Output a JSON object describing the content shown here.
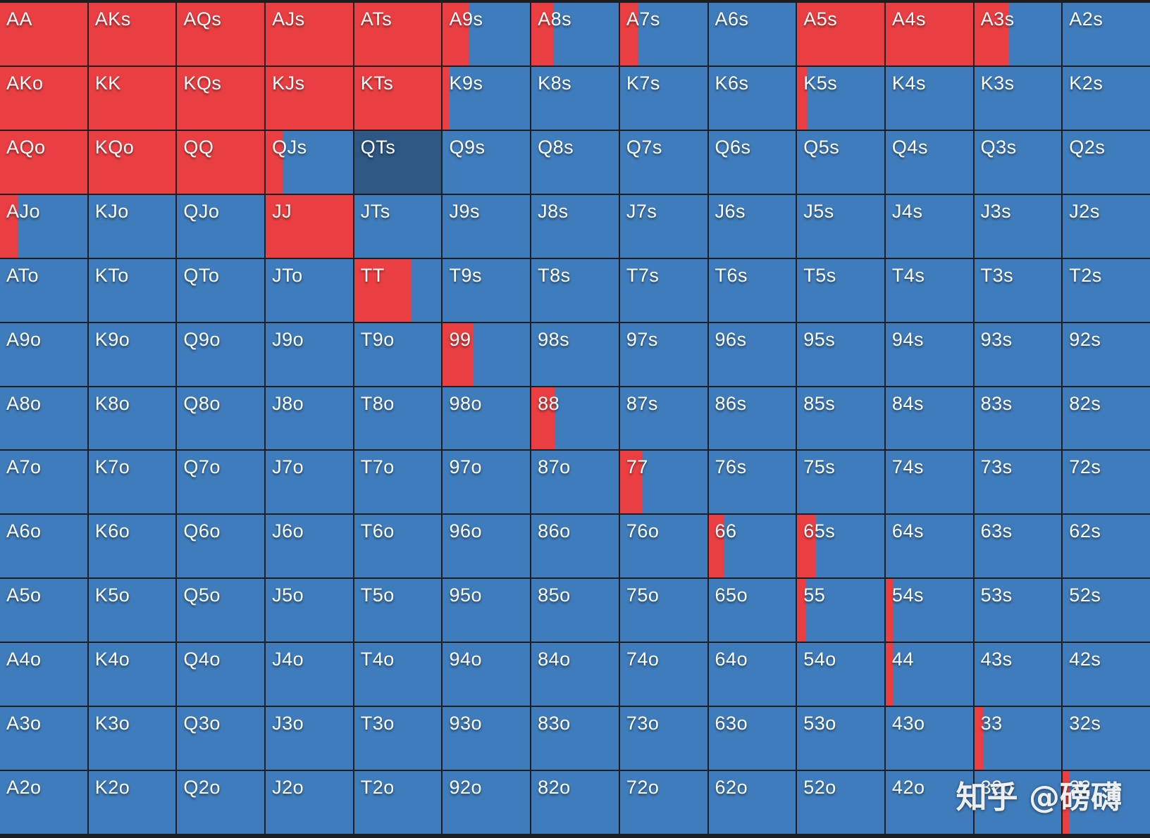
{
  "colors": {
    "raise": "#ea3f42",
    "fold": "#3f7cbb",
    "selected": "#2e5784",
    "gridline": "#1e1e20"
  },
  "selected_hand": "QTs",
  "watermark": "知乎 @磅礴",
  "grid": [
    [
      {
        "hand": "AA",
        "raise": 1.0
      },
      {
        "hand": "AKs",
        "raise": 1.0
      },
      {
        "hand": "AQs",
        "raise": 1.0
      },
      {
        "hand": "AJs",
        "raise": 1.0
      },
      {
        "hand": "ATs",
        "raise": 1.0
      },
      {
        "hand": "A9s",
        "raise": 0.3
      },
      {
        "hand": "A8s",
        "raise": 0.25
      },
      {
        "hand": "A7s",
        "raise": 0.2
      },
      {
        "hand": "A6s",
        "raise": 0.0
      },
      {
        "hand": "A5s",
        "raise": 1.0
      },
      {
        "hand": "A4s",
        "raise": 1.0
      },
      {
        "hand": "A3s",
        "raise": 0.4
      },
      {
        "hand": "A2s",
        "raise": 0.0
      }
    ],
    [
      {
        "hand": "AKo",
        "raise": 1.0
      },
      {
        "hand": "KK",
        "raise": 1.0
      },
      {
        "hand": "KQs",
        "raise": 1.0
      },
      {
        "hand": "KJs",
        "raise": 1.0
      },
      {
        "hand": "KTs",
        "raise": 1.0
      },
      {
        "hand": "K9s",
        "raise": 0.08
      },
      {
        "hand": "K8s",
        "raise": 0.0
      },
      {
        "hand": "K7s",
        "raise": 0.0
      },
      {
        "hand": "K6s",
        "raise": 0.0
      },
      {
        "hand": "K5s",
        "raise": 0.12
      },
      {
        "hand": "K4s",
        "raise": 0.0
      },
      {
        "hand": "K3s",
        "raise": 0.0
      },
      {
        "hand": "K2s",
        "raise": 0.0
      }
    ],
    [
      {
        "hand": "AQo",
        "raise": 1.0
      },
      {
        "hand": "KQo",
        "raise": 1.0
      },
      {
        "hand": "QQ",
        "raise": 1.0
      },
      {
        "hand": "QJs",
        "raise": 0.2
      },
      {
        "hand": "QTs",
        "raise": 0.0
      },
      {
        "hand": "Q9s",
        "raise": 0.0
      },
      {
        "hand": "Q8s",
        "raise": 0.0
      },
      {
        "hand": "Q7s",
        "raise": 0.0
      },
      {
        "hand": "Q6s",
        "raise": 0.0
      },
      {
        "hand": "Q5s",
        "raise": 0.0
      },
      {
        "hand": "Q4s",
        "raise": 0.0
      },
      {
        "hand": "Q3s",
        "raise": 0.0
      },
      {
        "hand": "Q2s",
        "raise": 0.0
      }
    ],
    [
      {
        "hand": "AJo",
        "raise": 0.2
      },
      {
        "hand": "KJo",
        "raise": 0.0
      },
      {
        "hand": "QJo",
        "raise": 0.0
      },
      {
        "hand": "JJ",
        "raise": 1.0
      },
      {
        "hand": "JTs",
        "raise": 0.0
      },
      {
        "hand": "J9s",
        "raise": 0.0
      },
      {
        "hand": "J8s",
        "raise": 0.0
      },
      {
        "hand": "J7s",
        "raise": 0.0
      },
      {
        "hand": "J6s",
        "raise": 0.0
      },
      {
        "hand": "J5s",
        "raise": 0.0
      },
      {
        "hand": "J4s",
        "raise": 0.0
      },
      {
        "hand": "J3s",
        "raise": 0.0
      },
      {
        "hand": "J2s",
        "raise": 0.0
      }
    ],
    [
      {
        "hand": "ATo",
        "raise": 0.0
      },
      {
        "hand": "KTo",
        "raise": 0.0
      },
      {
        "hand": "QTo",
        "raise": 0.0
      },
      {
        "hand": "JTo",
        "raise": 0.0
      },
      {
        "hand": "TT",
        "raise": 0.66
      },
      {
        "hand": "T9s",
        "raise": 0.0
      },
      {
        "hand": "T8s",
        "raise": 0.0
      },
      {
        "hand": "T7s",
        "raise": 0.0
      },
      {
        "hand": "T6s",
        "raise": 0.0
      },
      {
        "hand": "T5s",
        "raise": 0.0
      },
      {
        "hand": "T4s",
        "raise": 0.0
      },
      {
        "hand": "T3s",
        "raise": 0.0
      },
      {
        "hand": "T2s",
        "raise": 0.0
      }
    ],
    [
      {
        "hand": "A9o",
        "raise": 0.0
      },
      {
        "hand": "K9o",
        "raise": 0.0
      },
      {
        "hand": "Q9o",
        "raise": 0.0
      },
      {
        "hand": "J9o",
        "raise": 0.0
      },
      {
        "hand": "T9o",
        "raise": 0.0
      },
      {
        "hand": "99",
        "raise": 0.34
      },
      {
        "hand": "98s",
        "raise": 0.0
      },
      {
        "hand": "97s",
        "raise": 0.0
      },
      {
        "hand": "96s",
        "raise": 0.0
      },
      {
        "hand": "95s",
        "raise": 0.0
      },
      {
        "hand": "94s",
        "raise": 0.0
      },
      {
        "hand": "93s",
        "raise": 0.0
      },
      {
        "hand": "92s",
        "raise": 0.0
      }
    ],
    [
      {
        "hand": "A8o",
        "raise": 0.0
      },
      {
        "hand": "K8o",
        "raise": 0.0
      },
      {
        "hand": "Q8o",
        "raise": 0.0
      },
      {
        "hand": "J8o",
        "raise": 0.0
      },
      {
        "hand": "T8o",
        "raise": 0.0
      },
      {
        "hand": "98o",
        "raise": 0.0
      },
      {
        "hand": "88",
        "raise": 0.27
      },
      {
        "hand": "87s",
        "raise": 0.0
      },
      {
        "hand": "86s",
        "raise": 0.0
      },
      {
        "hand": "85s",
        "raise": 0.0
      },
      {
        "hand": "84s",
        "raise": 0.0
      },
      {
        "hand": "83s",
        "raise": 0.0
      },
      {
        "hand": "82s",
        "raise": 0.0
      }
    ],
    [
      {
        "hand": "A7o",
        "raise": 0.0
      },
      {
        "hand": "K7o",
        "raise": 0.0
      },
      {
        "hand": "Q7o",
        "raise": 0.0
      },
      {
        "hand": "J7o",
        "raise": 0.0
      },
      {
        "hand": "T7o",
        "raise": 0.0
      },
      {
        "hand": "97o",
        "raise": 0.0
      },
      {
        "hand": "87o",
        "raise": 0.0
      },
      {
        "hand": "77",
        "raise": 0.26
      },
      {
        "hand": "76s",
        "raise": 0.0
      },
      {
        "hand": "75s",
        "raise": 0.0
      },
      {
        "hand": "74s",
        "raise": 0.0
      },
      {
        "hand": "73s",
        "raise": 0.0
      },
      {
        "hand": "72s",
        "raise": 0.0
      }
    ],
    [
      {
        "hand": "A6o",
        "raise": 0.0
      },
      {
        "hand": "K6o",
        "raise": 0.0
      },
      {
        "hand": "Q6o",
        "raise": 0.0
      },
      {
        "hand": "J6o",
        "raise": 0.0
      },
      {
        "hand": "T6o",
        "raise": 0.0
      },
      {
        "hand": "96o",
        "raise": 0.0
      },
      {
        "hand": "86o",
        "raise": 0.0
      },
      {
        "hand": "76o",
        "raise": 0.0
      },
      {
        "hand": "66",
        "raise": 0.17
      },
      {
        "hand": "65s",
        "raise": 0.22
      },
      {
        "hand": "64s",
        "raise": 0.0
      },
      {
        "hand": "63s",
        "raise": 0.0
      },
      {
        "hand": "62s",
        "raise": 0.0
      }
    ],
    [
      {
        "hand": "A5o",
        "raise": 0.0
      },
      {
        "hand": "K5o",
        "raise": 0.0
      },
      {
        "hand": "Q5o",
        "raise": 0.0
      },
      {
        "hand": "J5o",
        "raise": 0.0
      },
      {
        "hand": "T5o",
        "raise": 0.0
      },
      {
        "hand": "95o",
        "raise": 0.0
      },
      {
        "hand": "85o",
        "raise": 0.0
      },
      {
        "hand": "75o",
        "raise": 0.0
      },
      {
        "hand": "65o",
        "raise": 0.0
      },
      {
        "hand": "55",
        "raise": 0.1
      },
      {
        "hand": "54s",
        "raise": 0.08
      },
      {
        "hand": "53s",
        "raise": 0.0
      },
      {
        "hand": "52s",
        "raise": 0.0
      }
    ],
    [
      {
        "hand": "A4o",
        "raise": 0.0
      },
      {
        "hand": "K4o",
        "raise": 0.0
      },
      {
        "hand": "Q4o",
        "raise": 0.0
      },
      {
        "hand": "J4o",
        "raise": 0.0
      },
      {
        "hand": "T4o",
        "raise": 0.0
      },
      {
        "hand": "94o",
        "raise": 0.0
      },
      {
        "hand": "84o",
        "raise": 0.0
      },
      {
        "hand": "74o",
        "raise": 0.0
      },
      {
        "hand": "64o",
        "raise": 0.0
      },
      {
        "hand": "54o",
        "raise": 0.0
      },
      {
        "hand": "44",
        "raise": 0.08
      },
      {
        "hand": "43s",
        "raise": 0.0
      },
      {
        "hand": "42s",
        "raise": 0.0
      }
    ],
    [
      {
        "hand": "A3o",
        "raise": 0.0
      },
      {
        "hand": "K3o",
        "raise": 0.0
      },
      {
        "hand": "Q3o",
        "raise": 0.0
      },
      {
        "hand": "J3o",
        "raise": 0.0
      },
      {
        "hand": "T3o",
        "raise": 0.0
      },
      {
        "hand": "93o",
        "raise": 0.0
      },
      {
        "hand": "83o",
        "raise": 0.0
      },
      {
        "hand": "73o",
        "raise": 0.0
      },
      {
        "hand": "63o",
        "raise": 0.0
      },
      {
        "hand": "53o",
        "raise": 0.0
      },
      {
        "hand": "43o",
        "raise": 0.0
      },
      {
        "hand": "33",
        "raise": 0.1
      },
      {
        "hand": "32s",
        "raise": 0.0
      }
    ],
    [
      {
        "hand": "A2o",
        "raise": 0.0
      },
      {
        "hand": "K2o",
        "raise": 0.0
      },
      {
        "hand": "Q2o",
        "raise": 0.0
      },
      {
        "hand": "J2o",
        "raise": 0.0
      },
      {
        "hand": "T2o",
        "raise": 0.0
      },
      {
        "hand": "92o",
        "raise": 0.0
      },
      {
        "hand": "82o",
        "raise": 0.0
      },
      {
        "hand": "72o",
        "raise": 0.0
      },
      {
        "hand": "62o",
        "raise": 0.0
      },
      {
        "hand": "52o",
        "raise": 0.0
      },
      {
        "hand": "42o",
        "raise": 0.0
      },
      {
        "hand": "32o",
        "raise": 0.0
      },
      {
        "hand": "22",
        "raise": 0.08
      }
    ]
  ]
}
